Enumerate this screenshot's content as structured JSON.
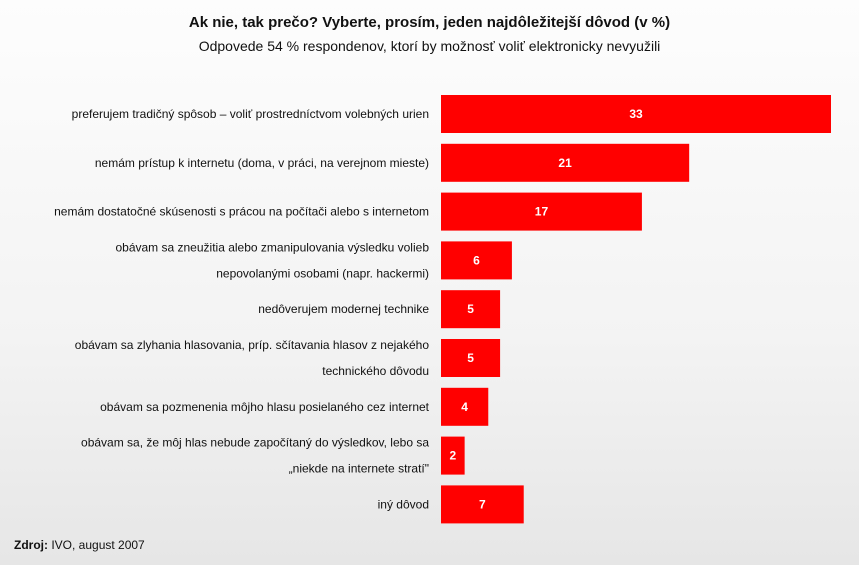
{
  "chart_data": {
    "type": "bar",
    "orientation": "horizontal",
    "title": "Ak nie, tak prečo? Vyberte, prosím, jeden najdôležitejší dôvod (v %)",
    "subtitle": "Odpovede 54 % respondenov, ktorí by možnosť voliť elektronicky nevyužili",
    "categories": [
      [
        "preferujem tradičný spôsob – voliť prostredníctvom volebných urien"
      ],
      [
        "nemám prístup k internetu (doma, v práci, na verejnom mieste)"
      ],
      [
        "nemám dostatočné skúsenosti s prácou na počítači alebo s internetom"
      ],
      [
        "obávam sa zneužitia alebo zmanipulovania výsledku volieb",
        "nepovolanými osobami (napr. hackermi)"
      ],
      [
        "nedôverujem modernej technike"
      ],
      [
        "obávam sa zlyhania hlasovania, príp. sčítavania hlasov z nejakého",
        "technického dôvodu"
      ],
      [
        "obávam sa pozmenenia môjho hlasu posielaného cez internet"
      ],
      [
        "obávam sa, že môj hlas nebude započítaný do výsledkov, lebo sa",
        "„niekde na internete stratí\""
      ],
      [
        "iný dôvod"
      ]
    ],
    "values": [
      33,
      21,
      17,
      6,
      5,
      5,
      4,
      2,
      7
    ],
    "xlim": [
      0,
      33
    ],
    "bar_color": "#ff0000",
    "grid": false,
    "legend": "none"
  },
  "source": {
    "label": "Zdroj:",
    "text": " IVO, august 2007"
  }
}
